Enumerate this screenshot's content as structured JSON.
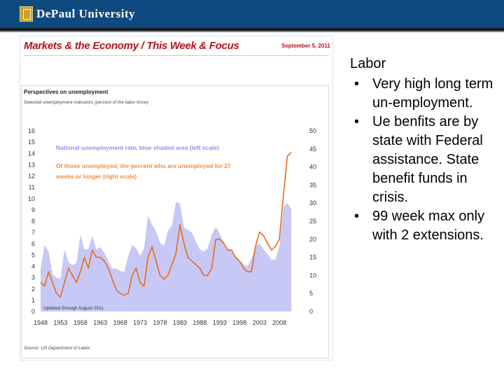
{
  "header": {
    "logo_text": "DePaul University"
  },
  "slide": {
    "title": "Markets & the Economy / This Week & Focus",
    "date": "September 5, 2011"
  },
  "chart_data": {
    "type": "area",
    "title": "Perspectives on unemployment",
    "subtitle": "Selected unemployment indicators (percent of the labor force)",
    "x": [
      1948,
      1949,
      1950,
      1951,
      1952,
      1953,
      1954,
      1955,
      1956,
      1957,
      1958,
      1959,
      1960,
      1961,
      1962,
      1963,
      1964,
      1965,
      1966,
      1967,
      1968,
      1969,
      1970,
      1971,
      1972,
      1973,
      1974,
      1975,
      1976,
      1977,
      1978,
      1979,
      1980,
      1981,
      1982,
      1983,
      1984,
      1985,
      1986,
      1987,
      1988,
      1989,
      1990,
      1991,
      1992,
      1993,
      1994,
      1995,
      1996,
      1997,
      1998,
      1999,
      2000,
      2001,
      2002,
      2003,
      2004,
      2005,
      2006,
      2007,
      2008,
      2009,
      2010,
      2011
    ],
    "series": [
      {
        "name": "National unemployment rate, blue shaded area (left scale)",
        "axis": "left",
        "values": [
          3.8,
          5.9,
          5.3,
          3.3,
          3.0,
          2.9,
          5.5,
          4.4,
          4.1,
          4.3,
          6.8,
          5.5,
          5.5,
          6.7,
          5.5,
          5.7,
          5.2,
          4.5,
          3.8,
          3.8,
          3.6,
          3.5,
          4.9,
          5.9,
          5.6,
          4.9,
          5.6,
          8.5,
          7.7,
          7.1,
          6.1,
          5.8,
          7.1,
          7.6,
          9.7,
          9.6,
          7.5,
          7.2,
          7.0,
          6.2,
          5.5,
          5.3,
          5.6,
          6.8,
          7.5,
          6.9,
          6.1,
          5.6,
          5.4,
          4.9,
          4.5,
          4.2,
          4.0,
          4.7,
          5.8,
          6.0,
          5.5,
          5.1,
          4.6,
          4.6,
          5.8,
          9.3,
          9.6,
          9.1
        ]
      },
      {
        "name": "Of those unemployed, the percent who are unemployed for 27 weeks or longer (right scale)",
        "axis": "right",
        "values": [
          8,
          7,
          11,
          8,
          5,
          4,
          8,
          12,
          10,
          8,
          11,
          15,
          12,
          17,
          15,
          15,
          14,
          12,
          9,
          6,
          5,
          4.5,
          5,
          10,
          12,
          8,
          7,
          15,
          18,
          14,
          10,
          9,
          10,
          13,
          16,
          24,
          19,
          15,
          14,
          13,
          12,
          10,
          10,
          12,
          20,
          20,
          19,
          17,
          17,
          15,
          14,
          12,
          11,
          11,
          18,
          22,
          21,
          19,
          17,
          18,
          20,
          32,
          43,
          44
        ]
      }
    ],
    "y_left": {
      "ticks": [
        "0",
        "1",
        "2",
        "3",
        "4",
        "5",
        "6",
        "7",
        "8",
        "9",
        "10",
        "11",
        "12",
        "13",
        "14",
        "15",
        "16"
      ],
      "range": [
        0,
        16
      ]
    },
    "y_right": {
      "ticks": [
        "0",
        "5",
        "10",
        "15",
        "20",
        "25",
        "30",
        "35",
        "40",
        "45",
        "50"
      ],
      "range": [
        0,
        50
      ]
    },
    "x_ticks": [
      "1948",
      "1953",
      "1958",
      "1963",
      "1968",
      "1973",
      "1978",
      "1983",
      "1988",
      "1993",
      "1998",
      "2003",
      "2008"
    ],
    "legend": [
      {
        "text": "National unemployment rate, blue shaded area (left scale)",
        "color": "#8f8ff5"
      },
      {
        "text": "Of those unemployed, the percent who are unemployed for 27 weeks or longer (right scale)",
        "color": "#f58a3c"
      }
    ],
    "note": "Updated through August 2011",
    "source": "Source: US Department of Labor",
    "colors": {
      "area": "#c7c8f5",
      "line": "#ec6a1c"
    }
  },
  "labor": {
    "heading": "Labor",
    "bullets": [
      "Very high long term un-employment.",
      "Ue benfits are by state with Federal assistance. State benefit funds in crisis.",
      "99 week max only with 2 extensions."
    ]
  }
}
